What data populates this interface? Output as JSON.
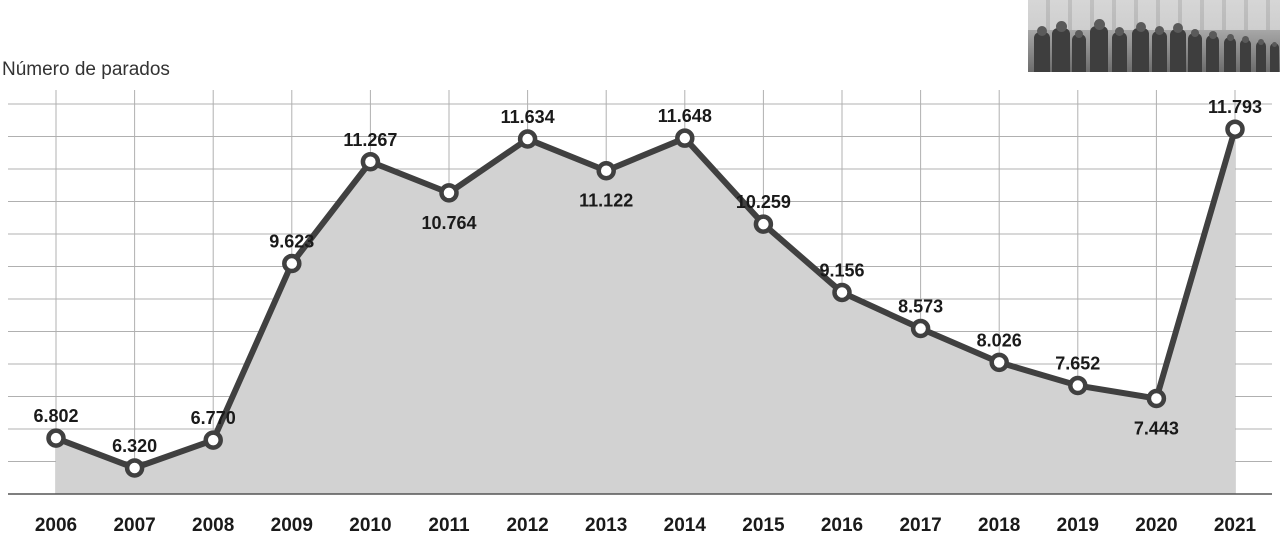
{
  "chart_data": {
    "type": "area",
    "ylabel": "Número de parados",
    "x": [
      "2006",
      "2007",
      "2008",
      "2009",
      "2010",
      "2011",
      "2012",
      "2013",
      "2014",
      "2015",
      "2016",
      "2017",
      "2018",
      "2019",
      "2020",
      "2021"
    ],
    "values": [
      6802,
      6320,
      6770,
      9623,
      11267,
      10764,
      11634,
      11122,
      11648,
      10259,
      9156,
      8573,
      8026,
      7652,
      7443,
      11793
    ],
    "labels": [
      "6.802",
      "6.320",
      "6.770",
      "9.623",
      "11.267",
      "10.764",
      "11.634",
      "11.122",
      "11.648",
      "10.259",
      "9.156",
      "8.573",
      "8.026",
      "7.652",
      "7.443",
      "11.793"
    ],
    "label_position": [
      "above",
      "above",
      "above",
      "above",
      "above",
      "below",
      "above",
      "below",
      "above",
      "above",
      "above",
      "above",
      "above",
      "above",
      "below",
      "above"
    ],
    "ylim": [
      5900,
      12200
    ],
    "grid": true,
    "colors": {
      "area": "#d2d2d2",
      "line": "#404040",
      "marker_fill": "#ffffff",
      "grid": "#b0b0b0",
      "axis": "#555555"
    }
  }
}
